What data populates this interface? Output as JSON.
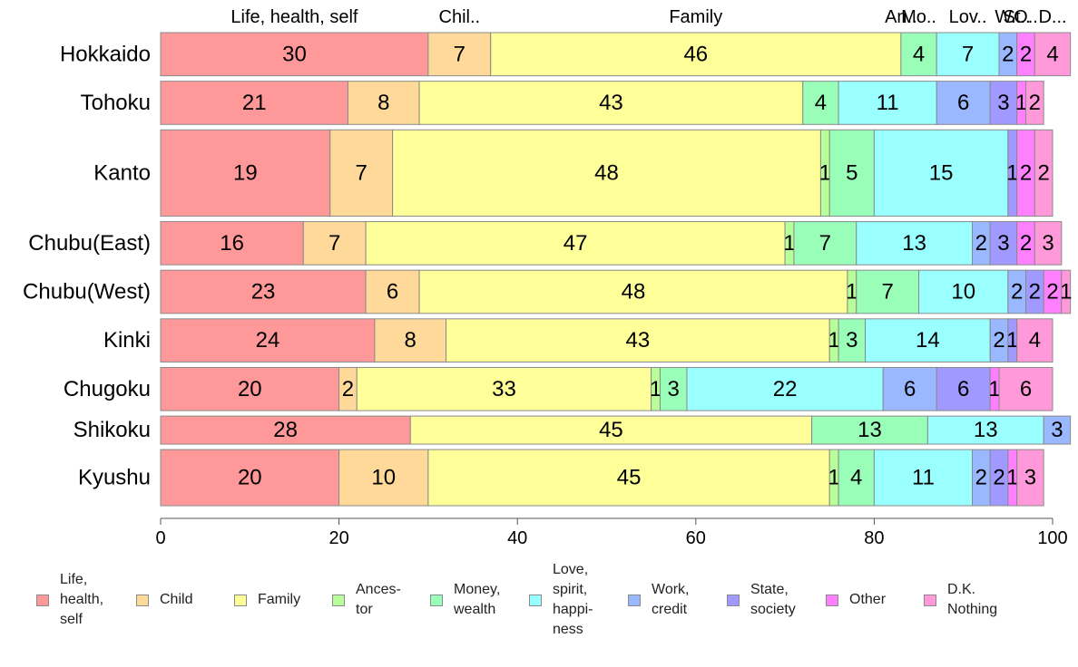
{
  "chart_data": {
    "type": "bar",
    "orientation": "horizontal",
    "stacked": true,
    "variable_height_bars": true,
    "categories": [
      "Hokkaido",
      "Tohoku",
      "Kanto",
      "Chubu(East)",
      "Chubu(West)",
      "Kinki",
      "Chugoku",
      "Shikoku",
      "Kyushu"
    ],
    "relative_heights": [
      1,
      1,
      2,
      1,
      1,
      1,
      1,
      0.65,
      1.3
    ],
    "series": [
      {
        "name": "Life, health, self",
        "color": "#ff9999",
        "values": [
          30,
          21,
          19,
          16,
          23,
          24,
          20,
          28,
          20
        ]
      },
      {
        "name": "Child",
        "color": "#ffd999",
        "values": [
          7,
          8,
          7,
          7,
          6,
          8,
          2,
          0,
          10
        ]
      },
      {
        "name": "Family",
        "color": "#ffff99",
        "values": [
          46,
          43,
          48,
          47,
          48,
          43,
          33,
          45,
          45
        ]
      },
      {
        "name": "Ances- tor",
        "color": "#b8ff99",
        "values": [
          0,
          0,
          1,
          1,
          1,
          1,
          1,
          0,
          1
        ]
      },
      {
        "name": "Money, wealth",
        "color": "#99ffb8",
        "values": [
          4,
          4,
          5,
          7,
          7,
          3,
          3,
          13,
          4
        ]
      },
      {
        "name": "Love, spirit, happi- ness",
        "color": "#99ffff",
        "values": [
          7,
          11,
          15,
          13,
          10,
          14,
          22,
          13,
          11
        ]
      },
      {
        "name": "Work, credit",
        "color": "#99b8ff",
        "values": [
          2,
          6,
          0,
          2,
          2,
          2,
          6,
          3,
          2
        ]
      },
      {
        "name": "State, society",
        "color": "#a099ff",
        "values": [
          0,
          3,
          1,
          3,
          2,
          1,
          6,
          0,
          2
        ]
      },
      {
        "name": "Other",
        "color": "#ff80ff",
        "values": [
          2,
          1,
          2,
          2,
          2,
          0,
          1,
          0,
          1
        ]
      },
      {
        "name": "D.K. Nothing",
        "color": "#ff99d9",
        "values": [
          4,
          2,
          2,
          3,
          1,
          4,
          6,
          0,
          3
        ]
      }
    ],
    "top_labels": [
      "Life, health, self",
      "Chil..",
      "Family",
      "An..",
      "Mo..",
      "Lov..",
      "W..",
      "St..",
      "O..",
      "D..."
    ],
    "xlim": [
      0,
      100
    ],
    "xticks": [
      "0",
      "20",
      "40",
      "60",
      "80",
      "100"
    ],
    "title": "",
    "xlabel": "",
    "ylabel": "",
    "legend_position": "bottom",
    "grid": false
  },
  "legend": [
    {
      "label": "Life,\nhealth,\nself",
      "color": "#ff9999"
    },
    {
      "label": "Child",
      "color": "#ffd999"
    },
    {
      "label": "Family",
      "color": "#ffff99"
    },
    {
      "label": "Ances-\ntor",
      "color": "#b8ff99"
    },
    {
      "label": "Money,\nwealth",
      "color": "#99ffb8"
    },
    {
      "label": "Love,\nspirit,\nhappi-\nness",
      "color": "#99ffff"
    },
    {
      "label": "Work,\ncredit",
      "color": "#99b8ff"
    },
    {
      "label": "State,\nsociety",
      "color": "#a099ff"
    },
    {
      "label": "Other",
      "color": "#ff80ff"
    },
    {
      "label": "D.K.\nNothing",
      "color": "#ff99d9"
    }
  ]
}
